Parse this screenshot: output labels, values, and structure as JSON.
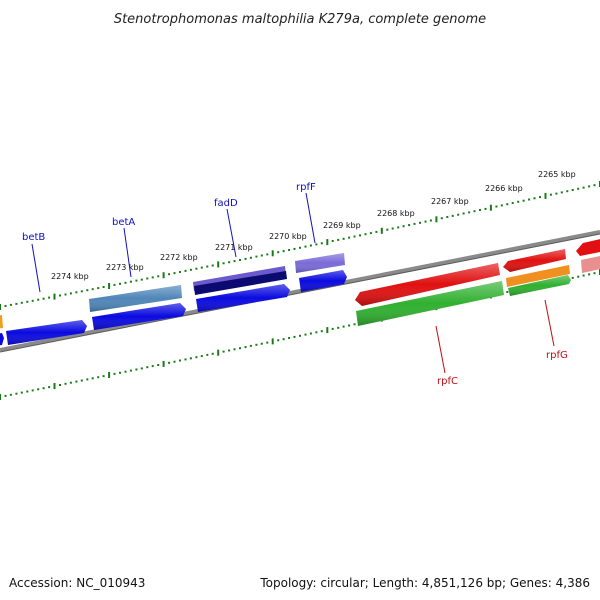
{
  "title": "Stenotrophomonas maltophilia K279a, complete genome",
  "footer": {
    "accession": "Accession: NC_010943",
    "summary": "Topology: circular; Length: 4,851,126 bp; Genes: 4,386"
  },
  "colors": {
    "backbone": "#808080",
    "tick": "#1a7a1a",
    "label_blue": "#1010c0",
    "label_red": "#c01010"
  },
  "scale": {
    "labels": [
      "2265 kbp",
      "2266 kbp",
      "2267 kbp",
      "2268 kbp",
      "2269 kbp",
      "2270 kbp",
      "2271 kbp",
      "2272 kbp",
      "2273 kbp",
      "2274 kbp"
    ]
  },
  "gene_labels": [
    {
      "id": "betB",
      "text": "betB",
      "color": "#1010c0"
    },
    {
      "id": "betA",
      "text": "betA",
      "color": "#1010c0"
    },
    {
      "id": "fadD",
      "text": "fadD",
      "color": "#1010c0"
    },
    {
      "id": "rpfF",
      "text": "rpfF",
      "color": "#1010c0"
    },
    {
      "id": "rpfC",
      "text": "rpfC",
      "color": "#c01010"
    },
    {
      "id": "rpfG",
      "text": "rpfG",
      "color": "#c01010"
    }
  ],
  "features": [
    {
      "name": "feature-orange-left",
      "color": "#f0a020"
    },
    {
      "name": "feature-blue-betB",
      "color": "#0a0ae0"
    },
    {
      "name": "feature-steelblue-betA-top",
      "color": "#4f86b8"
    },
    {
      "name": "feature-blue-betA",
      "color": "#0a0ae0"
    },
    {
      "name": "feature-purple-fadD-top",
      "color": "#6a5acd"
    },
    {
      "name": "feature-navy-fadD",
      "color": "#0a0a70"
    },
    {
      "name": "feature-blue-fadD",
      "color": "#0a0ae0"
    },
    {
      "name": "feature-purple-rpfF",
      "color": "#7a6ad8"
    },
    {
      "name": "feature-blue-rpfF",
      "color": "#0a0ae0"
    },
    {
      "name": "feature-red-rpfC",
      "color": "#e01010"
    },
    {
      "name": "feature-green-rpfC",
      "color": "#30b030"
    },
    {
      "name": "feature-red-rpfG",
      "color": "#e01010"
    },
    {
      "name": "feature-orange-rpfG",
      "color": "#f09020"
    },
    {
      "name": "feature-green-rpfG",
      "color": "#30b030"
    },
    {
      "name": "feature-red-right",
      "color": "#e01010"
    },
    {
      "name": "feature-pink-right",
      "color": "#e89090"
    }
  ]
}
